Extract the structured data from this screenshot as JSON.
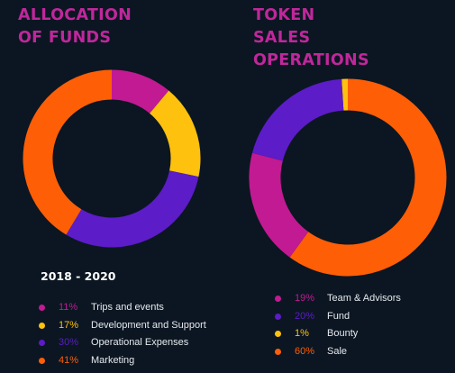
{
  "colors": {
    "background": "#0b1622",
    "title": "#c0279b",
    "label": "#e6e9ee"
  },
  "chart_data": [
    {
      "type": "pie",
      "variant": "donut",
      "title": "ALLOCATION OF FUNDS",
      "title_lines": [
        "ALLOCATION",
        "OF FUNDS"
      ],
      "subtitle": "2018 - 2020",
      "legend_position": "bottom",
      "slices": [
        {
          "label": "Trips and events",
          "value": 11,
          "display": "11%",
          "color": "#c21a92"
        },
        {
          "label": "Development and Support",
          "value": 17,
          "display": "17%",
          "color": "#fec10e"
        },
        {
          "label": "Operational Expenses",
          "value": 30,
          "display": "30%",
          "color": "#5c1cc7"
        },
        {
          "label": "Marketing",
          "value": 41,
          "display": "41%",
          "color": "#fe5e06"
        }
      ]
    },
    {
      "type": "pie",
      "variant": "donut",
      "title": "TOKEN SALES OPERATIONS",
      "title_lines": [
        "TOKEN",
        "SALES",
        "OPERATIONS"
      ],
      "legend_position": "bottom",
      "slices": [
        {
          "label": "Team & Advisors",
          "value": 19,
          "display": "19%",
          "color": "#c21a92"
        },
        {
          "label": "Fund",
          "value": 20,
          "display": "20%",
          "color": "#5c1cc7"
        },
        {
          "label": "Bounty",
          "value": 1,
          "display": "1%",
          "color": "#fec10e"
        },
        {
          "label": "Sale",
          "value": 60,
          "display": "60%",
          "color": "#fe5e06"
        }
      ]
    }
  ]
}
